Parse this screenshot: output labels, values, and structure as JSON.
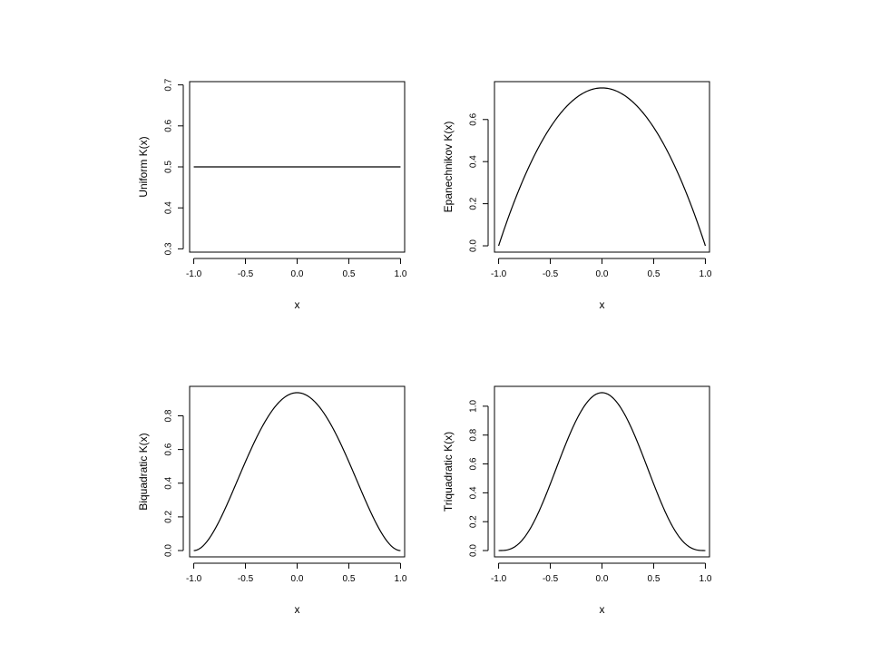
{
  "chart_data": [
    {
      "type": "line",
      "kernel": "uniform",
      "xlabel": "x",
      "ylabel": "Uniform K(x)",
      "xlim": [
        -1.04,
        1.04
      ],
      "ylim": [
        0.292,
        0.708
      ],
      "xticks": [
        -1.0,
        -0.5,
        0.0,
        0.5,
        1.0
      ],
      "xtick_labels": [
        "-1.0",
        "-0.5",
        "0.0",
        "0.5",
        "1.0"
      ],
      "yticks": [
        0.3,
        0.4,
        0.5,
        0.6,
        0.7
      ],
      "ytick_labels": [
        "0.3",
        "0.4",
        "0.5",
        "0.6",
        "0.7"
      ],
      "series": [
        {
          "x": [
            -1.0,
            -0.5,
            0.0,
            0.5,
            1.0
          ],
          "y": [
            0.5,
            0.5,
            0.5,
            0.5,
            0.5
          ]
        }
      ],
      "grid": false
    },
    {
      "type": "line",
      "kernel": "epanechnikov",
      "xlabel": "x",
      "ylabel": "Epanechnikov K(x)",
      "xlim": [
        -1.04,
        1.04
      ],
      "ylim": [
        -0.03,
        0.78
      ],
      "xticks": [
        -1.0,
        -0.5,
        0.0,
        0.5,
        1.0
      ],
      "xtick_labels": [
        "-1.0",
        "-0.5",
        "0.0",
        "0.5",
        "1.0"
      ],
      "yticks": [
        0.0,
        0.2,
        0.4,
        0.6
      ],
      "ytick_labels": [
        "0.0",
        "0.2",
        "0.4",
        "0.6"
      ],
      "series": [
        {
          "x": [
            -1.0,
            -0.9,
            -0.8,
            -0.7,
            -0.6,
            -0.5,
            -0.4,
            -0.3,
            -0.2,
            -0.1,
            0.0,
            0.1,
            0.2,
            0.3,
            0.4,
            0.5,
            0.6,
            0.7,
            0.8,
            0.9,
            1.0
          ],
          "y": [
            0.0,
            0.1425,
            0.27,
            0.3825,
            0.48,
            0.5625,
            0.63,
            0.6825,
            0.72,
            0.7425,
            0.75,
            0.7425,
            0.72,
            0.6825,
            0.63,
            0.5625,
            0.48,
            0.3825,
            0.27,
            0.1425,
            0.0
          ]
        }
      ],
      "grid": false
    },
    {
      "type": "line",
      "kernel": "biquadratic",
      "xlabel": "x",
      "ylabel": "Biquadratic K(x)",
      "xlim": [
        -1.04,
        1.04
      ],
      "ylim": [
        -0.0375,
        0.975
      ],
      "xticks": [
        -1.0,
        -0.5,
        0.0,
        0.5,
        1.0
      ],
      "xtick_labels": [
        "-1.0",
        "-0.5",
        "0.0",
        "0.5",
        "1.0"
      ],
      "yticks": [
        0.0,
        0.2,
        0.4,
        0.6,
        0.8
      ],
      "ytick_labels": [
        "0.0",
        "0.2",
        "0.4",
        "0.6",
        "0.8"
      ],
      "series": [
        {
          "x": [
            -1.0,
            -0.9,
            -0.8,
            -0.7,
            -0.6,
            -0.5,
            -0.4,
            -0.3,
            -0.2,
            -0.1,
            0.0,
            0.1,
            0.2,
            0.3,
            0.4,
            0.5,
            0.6,
            0.7,
            0.8,
            0.9,
            1.0
          ],
          "y": [
            0.0,
            0.0337,
            0.1207,
            0.2414,
            0.384,
            0.5273,
            0.6615,
            0.7764,
            0.864,
            0.919,
            0.9375,
            0.919,
            0.864,
            0.7764,
            0.6615,
            0.5273,
            0.384,
            0.2414,
            0.1207,
            0.0337,
            0.0
          ]
        }
      ],
      "grid": false
    },
    {
      "type": "line",
      "kernel": "triquadratic",
      "xlabel": "x",
      "ylabel": "Triquadratic K(x)",
      "xlim": [
        -1.04,
        1.04
      ],
      "ylim": [
        -0.0437,
        1.1375
      ],
      "xticks": [
        -1.0,
        -0.5,
        0.0,
        0.5,
        1.0
      ],
      "xtick_labels": [
        "-1.0",
        "-0.5",
        "0.0",
        "0.5",
        "1.0"
      ],
      "yticks": [
        0.0,
        0.2,
        0.4,
        0.6,
        0.8,
        1.0
      ],
      "ytick_labels": [
        "0.0",
        "0.2",
        "0.4",
        "0.6",
        "0.8",
        "1.0"
      ],
      "series": [
        {
          "x": [
            -1.0,
            -0.9,
            -0.8,
            -0.7,
            -0.6,
            -0.5,
            -0.4,
            -0.3,
            -0.2,
            -0.1,
            0.0,
            0.1,
            0.2,
            0.3,
            0.4,
            0.5,
            0.6,
            0.7,
            0.8,
            0.9,
            1.0
          ],
          "y": [
            0.0,
            0.0075,
            0.051,
            0.1423,
            0.2867,
            0.4614,
            0.6481,
            0.8242,
            0.968,
            1.0611,
            1.0938,
            1.0611,
            0.968,
            0.8242,
            0.6481,
            0.4614,
            0.2867,
            0.1423,
            0.051,
            0.0075,
            0.0
          ]
        }
      ],
      "grid": false
    }
  ]
}
